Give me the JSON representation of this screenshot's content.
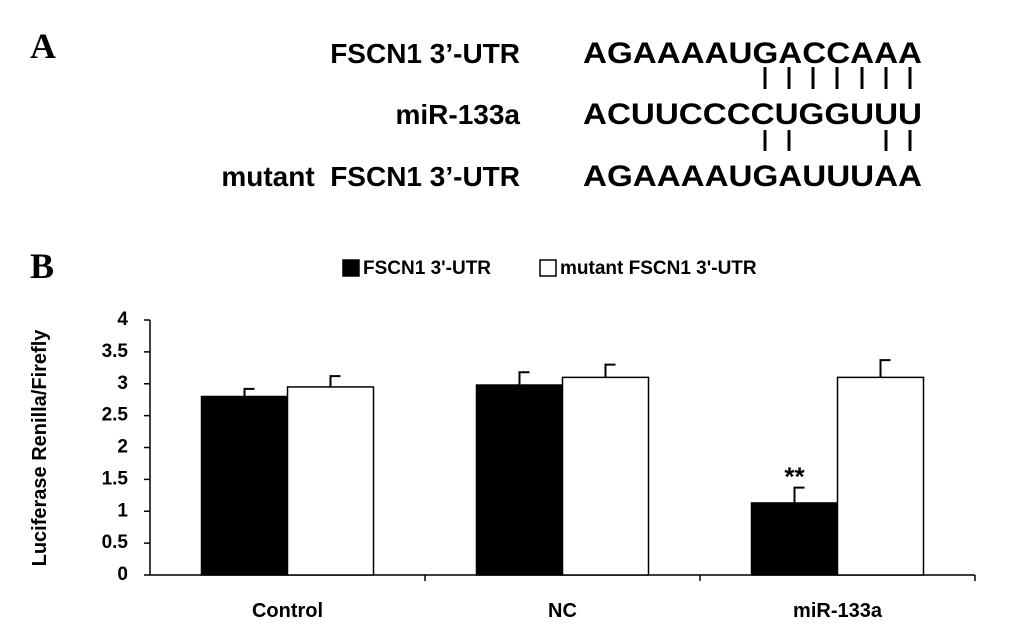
{
  "panel_a": {
    "letter": "A",
    "rows": [
      {
        "label": "FSCN1 3’-UTR",
        "sequence": "AGAAAAUGACCAAA"
      },
      {
        "label": "miR-133a",
        "sequence": "ACUUCCCCUGGUUU"
      },
      {
        "label": "mutant  FSCN1 3’-UTR",
        "sequence": "AGAAAAUGAUUUAA"
      }
    ]
  },
  "chart_data": {
    "type": "bar",
    "panel_label": "B",
    "y_label": "Luciferase Renilla/Firefly",
    "categories": [
      "Control",
      "NC",
      "miR-133a"
    ],
    "series": [
      {
        "name": "FSCN1 3'-UTR",
        "color": "#000000",
        "values": [
          2.8,
          2.98,
          1.13
        ],
        "errors": [
          0.12,
          0.2,
          0.24
        ]
      },
      {
        "name": "mutant FSCN1 3'-UTR",
        "color": "#ffffff",
        "values": [
          2.95,
          3.1,
          3.1
        ],
        "errors": [
          0.17,
          0.2,
          0.27
        ]
      }
    ],
    "annotation": "**",
    "ylim": [
      0,
      4
    ],
    "yticks": [
      0,
      0.5,
      1,
      1.5,
      2,
      2.5,
      3,
      3.5,
      4
    ],
    "grid": false,
    "legend": "top"
  }
}
